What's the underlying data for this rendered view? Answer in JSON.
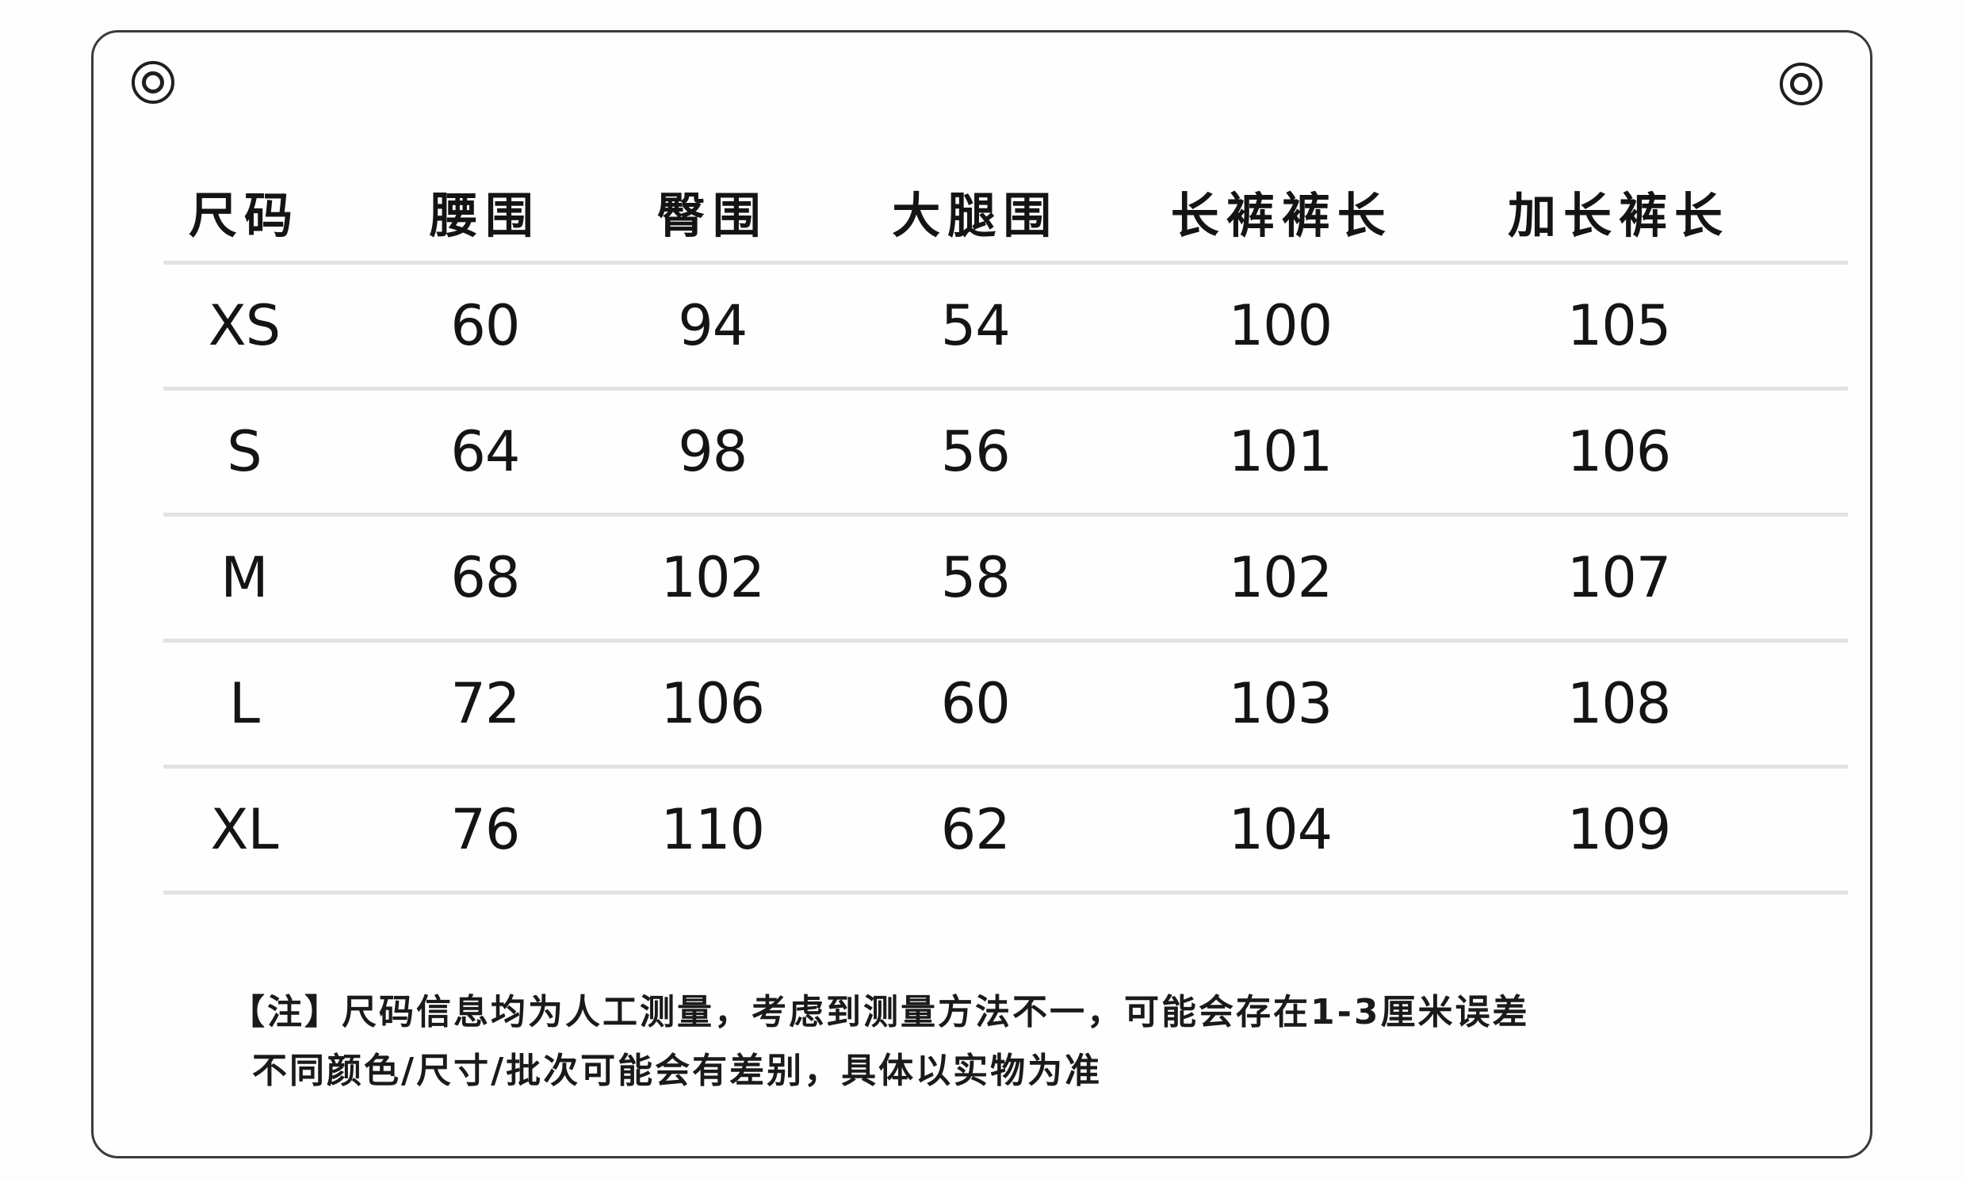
{
  "card": {
    "background": "#fefefe",
    "border_color": "#3a3a3a"
  },
  "colors": {
    "text": "#141414",
    "separator": "#e2e2e2"
  },
  "icons": {
    "top_left": "grommet-icon",
    "top_right": "grommet-icon"
  },
  "table": {
    "columns": [
      "尺码",
      "腰围",
      "臀围",
      "大腿围",
      "长裤裤长",
      "加长裤长"
    ],
    "rows": [
      [
        "XS",
        "60",
        "94",
        "54",
        "100",
        "105"
      ],
      [
        "S",
        "64",
        "98",
        "56",
        "101",
        "106"
      ],
      [
        "M",
        "68",
        "102",
        "58",
        "102",
        "107"
      ],
      [
        "L",
        "72",
        "106",
        "60",
        "103",
        "108"
      ],
      [
        "XL",
        "76",
        "110",
        "62",
        "104",
        "109"
      ]
    ]
  },
  "note": {
    "line1": "【注】尺码信息均为人工测量，考虑到测量方法不一，可能会存在1-3厘米误差",
    "line2": "不同颜色/尺寸/批次可能会有差别，具体以实物为准"
  }
}
